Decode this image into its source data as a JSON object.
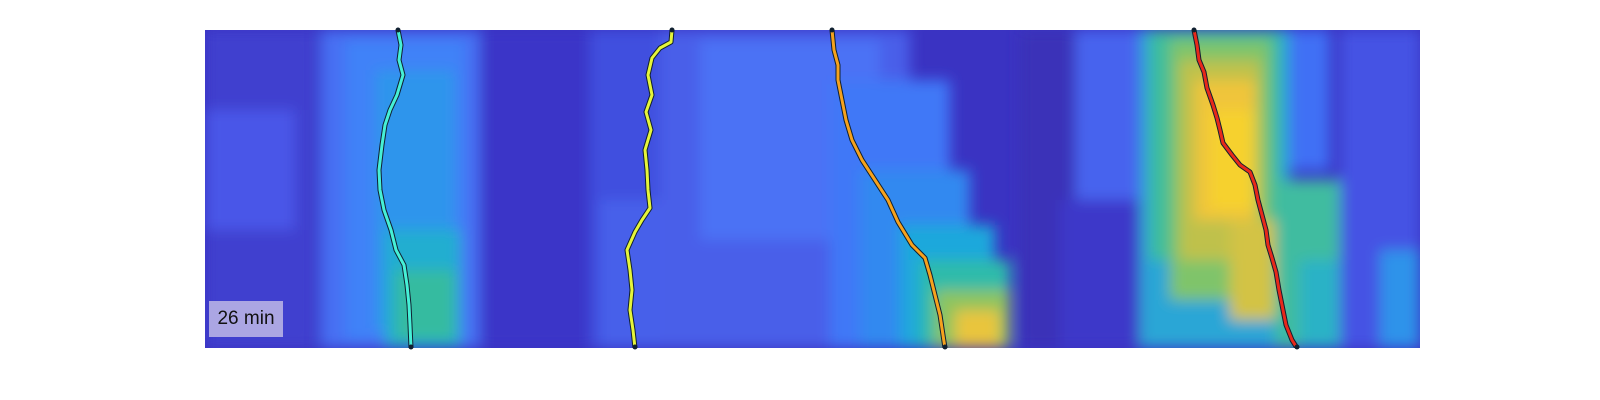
{
  "time_label": "26 min",
  "colormap": [
    "#3e26a8",
    "#4a47e6",
    "#3d7efb",
    "#1aa4de",
    "#2fbba4",
    "#7cc26e",
    "#c1bf47",
    "#f1c63a",
    "#f9e61e"
  ],
  "tracks": [
    {
      "name": "cyan-track",
      "color": "#46f0d6"
    },
    {
      "name": "yellow-track",
      "color": "#e6f53a"
    },
    {
      "name": "orange-track",
      "color": "#f6a21d"
    },
    {
      "name": "red-track",
      "color": "#e8281a"
    }
  ]
}
